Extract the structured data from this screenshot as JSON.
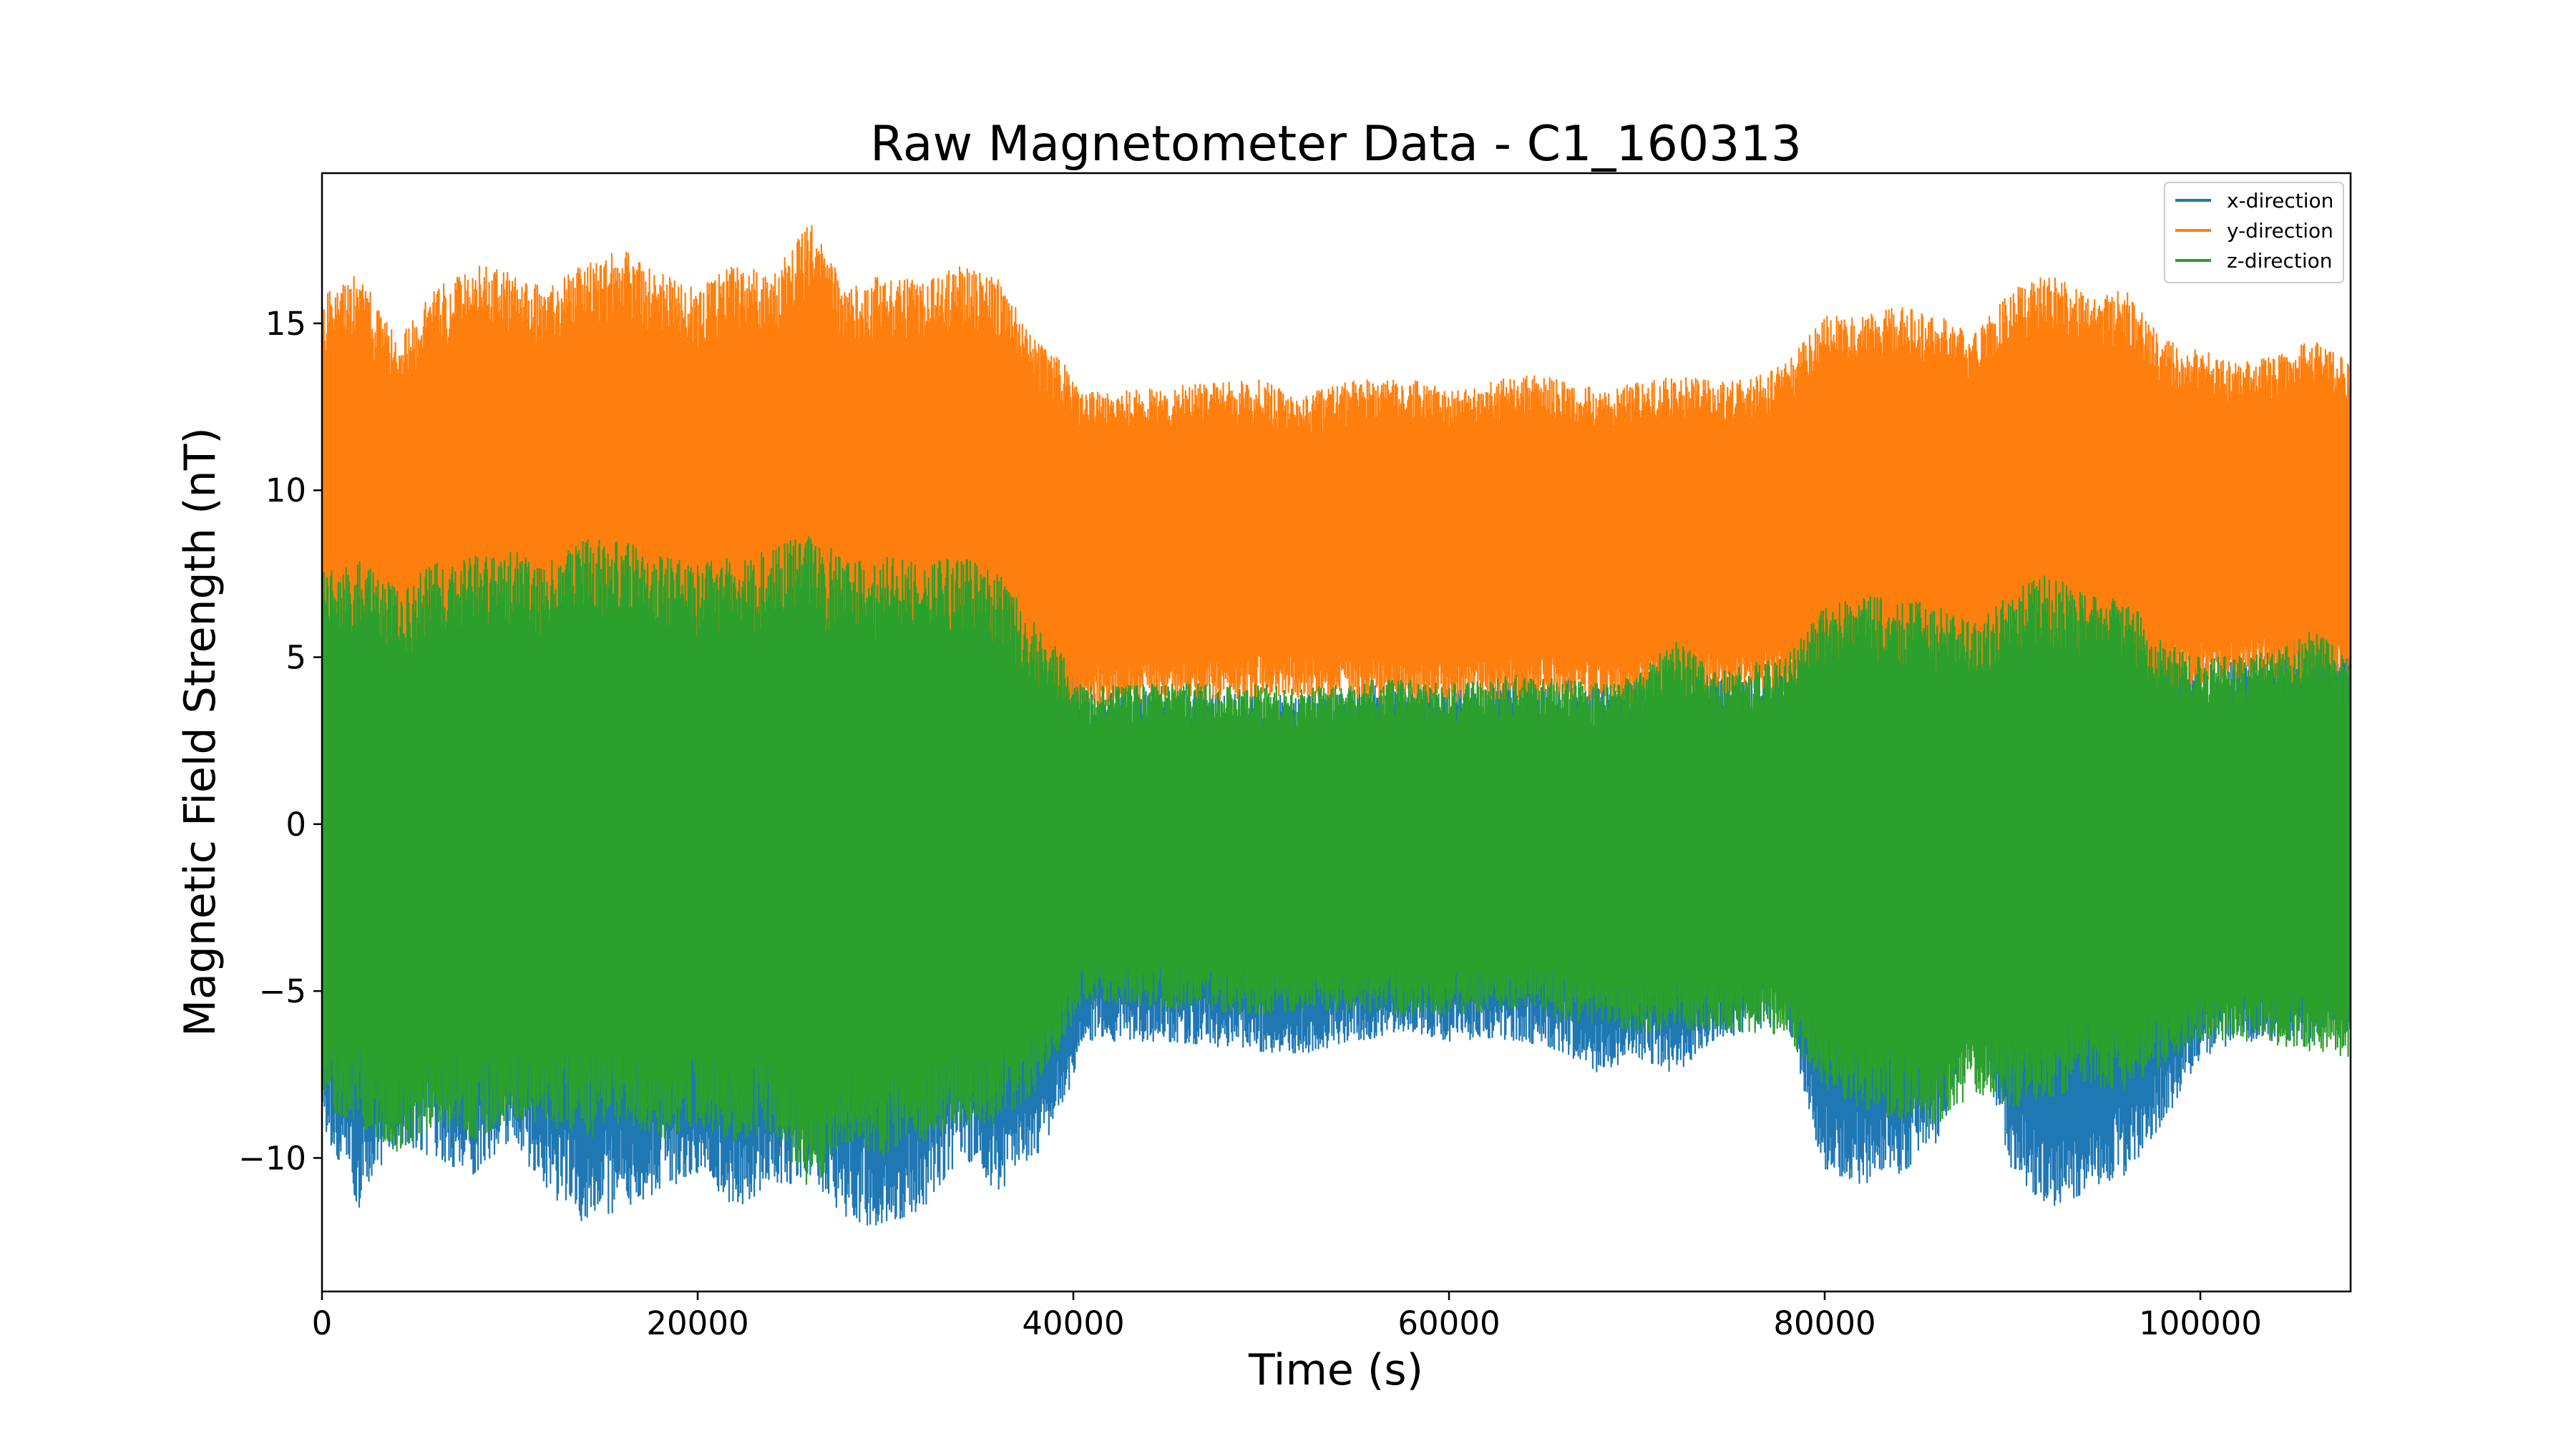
{
  "chart_data": {
    "type": "line",
    "title": "Raw Magnetometer Data - C1_160313",
    "xlabel": "Time (s)",
    "ylabel": "Magnetic Field Strength (nT)",
    "xlim": [
      0,
      108000
    ],
    "ylim": [
      -14,
      19.5
    ],
    "xticks": [
      0,
      20000,
      40000,
      60000,
      80000,
      100000
    ],
    "xtick_labels": [
      "0",
      "20000",
      "40000",
      "60000",
      "80000",
      "100000"
    ],
    "yticks": [
      -10,
      -5,
      0,
      5,
      10,
      15
    ],
    "ytick_labels": [
      "−10",
      "−5",
      "0",
      "5",
      "10",
      "15"
    ],
    "grid": false,
    "legend_position": "top-right",
    "series": [
      {
        "name": "x-direction",
        "color": "#1f77b4",
        "envelope_x": [
          0,
          2000,
          4000,
          6000,
          8000,
          10000,
          12000,
          14000,
          16000,
          18000,
          20000,
          22000,
          24000,
          26000,
          28000,
          30000,
          32000,
          34000,
          36000,
          38000,
          39500,
          40500,
          45000,
          50000,
          52000,
          55000,
          58000,
          60000,
          62000,
          64000,
          66000,
          68000,
          70000,
          72000,
          74000,
          76000,
          78000,
          80000,
          82000,
          84000,
          86000,
          88000,
          90000,
          92000,
          94000,
          96000,
          98000,
          100000,
          102000,
          104000,
          106000,
          108000
        ],
        "envelope_upper": [
          6.0,
          6.3,
          6.0,
          6.5,
          6.0,
          6.3,
          6.6,
          6.2,
          7.5,
          6.5,
          6.3,
          6.1,
          6.6,
          7.8,
          6.8,
          7.0,
          6.6,
          7.0,
          6.7,
          6.0,
          5.8,
          4.0,
          4.0,
          3.9,
          3.8,
          4.1,
          4.2,
          4.0,
          4.1,
          4.3,
          4.4,
          4.2,
          4.4,
          4.6,
          4.5,
          4.4,
          4.8,
          5.2,
          5.2,
          5.3,
          5.0,
          5.5,
          5.5,
          5.8,
          5.6,
          5.9,
          5.0,
          4.8,
          4.9,
          5.3,
          5.8,
          5.5
        ],
        "envelope_lower": [
          -9.0,
          -11.5,
          -9.5,
          -10.0,
          -10.5,
          -9.5,
          -11.0,
          -12.0,
          -11.5,
          -11.0,
          -10.5,
          -11.5,
          -11.0,
          -10.5,
          -12.0,
          -12.0,
          -11.5,
          -10.0,
          -11.0,
          -10.0,
          -8.5,
          -6.5,
          -6.5,
          -6.8,
          -6.9,
          -6.5,
          -6.2,
          -6.5,
          -6.4,
          -6.5,
          -6.8,
          -7.5,
          -7.0,
          -7.5,
          -6.5,
          -6.2,
          -6.0,
          -10.5,
          -10.8,
          -10.5,
          -9.5,
          -6.2,
          -10.5,
          -11.5,
          -11.0,
          -10.5,
          -9.0,
          -7.0,
          -6.5,
          -6.5,
          -6.5,
          -6.2
        ]
      },
      {
        "name": "y-direction",
        "color": "#ff7f0e",
        "envelope_x": [
          0,
          2000,
          4000,
          6000,
          8000,
          10000,
          12000,
          14000,
          16000,
          18000,
          20000,
          22000,
          24000,
          26000,
          28000,
          30000,
          32000,
          34000,
          36000,
          38000,
          39500,
          40500,
          45000,
          50000,
          52000,
          55000,
          58000,
          60000,
          62000,
          64000,
          66000,
          68000,
          70000,
          72000,
          74000,
          76000,
          78000,
          80000,
          82000,
          84000,
          86000,
          88000,
          90000,
          92000,
          94000,
          96000,
          98000,
          100000,
          102000,
          104000,
          106000,
          108000
        ],
        "envelope_upper": [
          15.8,
          16.5,
          14.5,
          16.0,
          16.8,
          16.5,
          16.0,
          16.8,
          17.2,
          16.5,
          16.0,
          16.8,
          16.5,
          18.0,
          16.0,
          16.5,
          16.3,
          16.7,
          16.3,
          14.5,
          13.8,
          12.9,
          13.1,
          13.3,
          12.8,
          13.3,
          13.3,
          13.0,
          13.2,
          13.5,
          13.3,
          13.0,
          13.2,
          13.4,
          13.3,
          13.3,
          13.8,
          15.2,
          15.2,
          15.5,
          15.3,
          14.8,
          16.0,
          16.5,
          15.8,
          16.0,
          14.5,
          14.2,
          13.8,
          14.0,
          14.5,
          13.8
        ],
        "envelope_lower": [
          2.0,
          1.5,
          2.5,
          2.0,
          2.5,
          2.2,
          2.0,
          2.5,
          2.0,
          2.3,
          2.5,
          2.0,
          2.5,
          1.5,
          2.2,
          2.0,
          2.5,
          2.3,
          2.5,
          2.8,
          3.0,
          3.5,
          3.7,
          3.8,
          3.8,
          3.7,
          3.6,
          3.7,
          3.7,
          3.8,
          3.7,
          3.7,
          3.6,
          3.8,
          3.9,
          4.0,
          4.0,
          3.5,
          3.5,
          3.3,
          3.5,
          3.8,
          3.5,
          3.3,
          3.5,
          3.4,
          3.8,
          4.2,
          4.3,
          4.3,
          4.2,
          4.4
        ]
      },
      {
        "name": "z-direction",
        "color": "#2ca02c",
        "envelope_x": [
          0,
          2000,
          4000,
          6000,
          8000,
          10000,
          12000,
          14000,
          16000,
          18000,
          20000,
          22000,
          24000,
          26000,
          28000,
          30000,
          32000,
          34000,
          36000,
          38000,
          39500,
          40500,
          45000,
          50000,
          52000,
          55000,
          58000,
          60000,
          62000,
          64000,
          66000,
          68000,
          70000,
          72000,
          74000,
          76000,
          78000,
          80000,
          82000,
          84000,
          86000,
          88000,
          90000,
          92000,
          94000,
          96000,
          98000,
          100000,
          102000,
          104000,
          106000,
          108000
        ],
        "envelope_upper": [
          7.5,
          8.0,
          7.0,
          7.8,
          8.0,
          8.2,
          7.8,
          8.5,
          8.5,
          8.0,
          7.8,
          8.0,
          8.2,
          8.8,
          7.8,
          8.0,
          7.8,
          8.0,
          7.5,
          6.0,
          5.0,
          4.1,
          4.2,
          4.2,
          4.0,
          4.3,
          4.3,
          4.2,
          4.3,
          4.5,
          4.3,
          4.2,
          4.4,
          5.6,
          4.6,
          4.8,
          5.0,
          6.5,
          6.8,
          6.8,
          6.5,
          6.0,
          7.0,
          7.5,
          6.8,
          6.8,
          5.5,
          5.0,
          5.0,
          5.2,
          5.8,
          5.0
        ],
        "envelope_lower": [
          -8.5,
          -9.0,
          -9.8,
          -9.0,
          -9.5,
          -8.8,
          -9.0,
          -9.5,
          -9.0,
          -9.5,
          -9.0,
          -9.5,
          -9.2,
          -11.0,
          -9.5,
          -10.0,
          -9.5,
          -9.0,
          -9.0,
          -8.0,
          -6.5,
          -5.3,
          -5.5,
          -5.7,
          -5.6,
          -5.6,
          -5.8,
          -5.7,
          -5.6,
          -5.5,
          -5.9,
          -6.0,
          -6.2,
          -6.2,
          -6.2,
          -6.3,
          -6.3,
          -8.0,
          -8.5,
          -8.8,
          -9.0,
          -8.0,
          -8.5,
          -8.2,
          -7.8,
          -8.0,
          -7.2,
          -6.5,
          -6.5,
          -6.6,
          -6.8,
          -7.0
        ]
      }
    ]
  }
}
